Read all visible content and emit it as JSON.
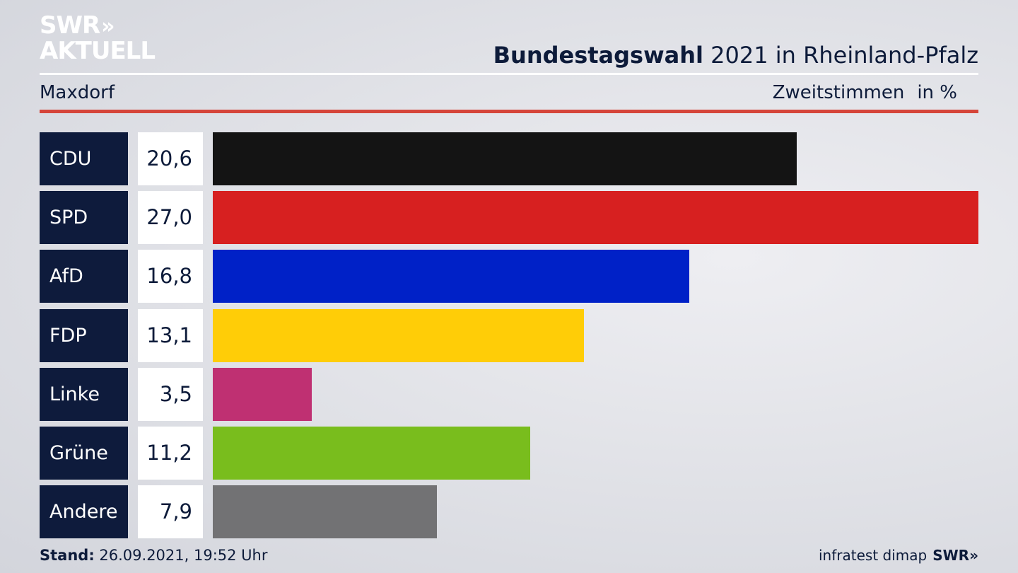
{
  "logo": {
    "line1": "SWR",
    "line2": "AKTUELL",
    "chevrons": "»"
  },
  "header": {
    "title_bold": "Bundestagswahl",
    "title_rest": " 2021 in Rheinland-Pfalz",
    "district": "Maxdorf",
    "metric": "Zweitstimmen",
    "unit": "in %"
  },
  "footer": {
    "stand_label": "Stand:",
    "stand_value": " 26.09.2021, 19:52 Uhr",
    "source": "infratest dimap",
    "brand": "SWR»"
  },
  "chart_data": {
    "type": "bar",
    "orientation": "horizontal",
    "categories": [
      "CDU",
      "SPD",
      "AfD",
      "FDP",
      "Linke",
      "Grüne",
      "Andere"
    ],
    "value_labels": [
      "20,6",
      "27,0",
      "16,8",
      "13,1",
      "3,5",
      "11,2",
      "7,9"
    ],
    "values": [
      20.6,
      27.0,
      16.8,
      13.1,
      3.5,
      11.2,
      7.9
    ],
    "colors": [
      "#141414",
      "#d72020",
      "#0021c7",
      "#ffcd07",
      "#bf3072",
      "#79bd1d",
      "#727274"
    ],
    "xlim": [
      0,
      27.0
    ],
    "title": "Bundestagswahl 2021 in Rheinland-Pfalz",
    "subtitle": "Maxdorf",
    "unit": "in %"
  }
}
